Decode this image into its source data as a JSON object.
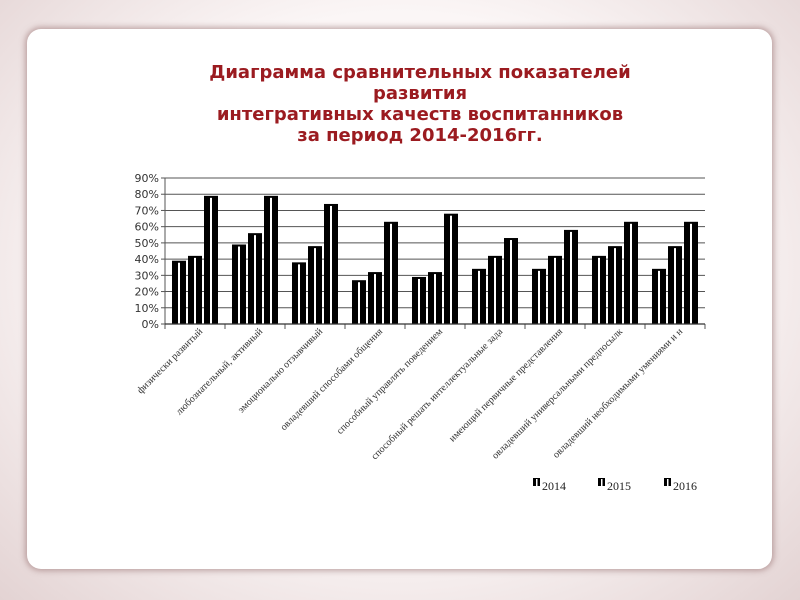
{
  "title_lines": [
    "Диаграмма сравнительных показателей",
    "развития",
    "интегративных качеств  воспитанников",
    "за период 2014-2016гг."
  ],
  "chart_data": {
    "type": "bar",
    "title": "Диаграмма сравнительных показателей развития интегративных качеств  воспитанников за период 2014-2016гг.",
    "categories": [
      "физически развитый",
      "любознательный, активный",
      "эмоционально отзывчивый",
      "овладевший способами общения",
      "способный управлять поведением",
      "способный решать интеллектуальные зада",
      "имеющий первичные представления",
      "овладевший универсальными предпосылк",
      "овладевший необходимыми умениями и н"
    ],
    "series": [
      {
        "name": "2014",
        "values": [
          39,
          49,
          38,
          27,
          29,
          34,
          34,
          42,
          34
        ]
      },
      {
        "name": "2015",
        "values": [
          42,
          56,
          48,
          32,
          32,
          42,
          42,
          48,
          48
        ]
      },
      {
        "name": "2016",
        "values": [
          79,
          79,
          74,
          63,
          68,
          53,
          58,
          63,
          63
        ]
      }
    ],
    "ylim": [
      0,
      90
    ],
    "yticks": [
      "0%",
      "10%",
      "20%",
      "30%",
      "40%",
      "50%",
      "60%",
      "70%",
      "80%",
      "90%"
    ],
    "grid": true,
    "legend": "bottom-right",
    "bar_fill": "#000000",
    "bar_stripe": "#ffffff"
  }
}
